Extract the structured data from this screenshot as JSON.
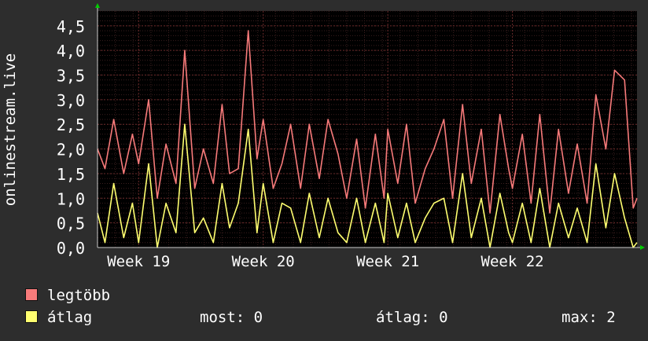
{
  "chart_data": {
    "type": "line",
    "ylabel": "onlinestream.live",
    "ylim": [
      0,
      4.8
    ],
    "y_ticks": [
      "0,0",
      "0,5",
      "1,0",
      "1,5",
      "2,0",
      "2,5",
      "3,0",
      "3,5",
      "4,0",
      "4,5"
    ],
    "y_tick_values": [
      0,
      0.5,
      1.0,
      1.5,
      2.0,
      2.5,
      3.0,
      3.5,
      4.0,
      4.5
    ],
    "x_ticks": [
      "Week 19",
      "Week 20",
      "Week 21",
      "Week 22"
    ],
    "x_tick_values": [
      19,
      20,
      21,
      22
    ],
    "xlim": [
      18.67,
      23.0
    ],
    "grid": true,
    "background": "#000000",
    "series": [
      {
        "name": "legtöbb",
        "color": "#f77a7a",
        "x": [
          18.67,
          18.73,
          18.8,
          18.88,
          18.95,
          19.0,
          19.08,
          19.15,
          19.22,
          19.3,
          19.37,
          19.45,
          19.52,
          19.6,
          19.67,
          19.73,
          19.8,
          19.88,
          19.95,
          20.0,
          20.08,
          20.15,
          20.22,
          20.3,
          20.37,
          20.45,
          20.52,
          20.6,
          20.67,
          20.75,
          20.82,
          20.9,
          20.97,
          21.0,
          21.08,
          21.15,
          21.22,
          21.3,
          21.37,
          21.45,
          21.52,
          21.6,
          21.67,
          21.75,
          21.82,
          21.9,
          21.97,
          22.0,
          22.08,
          22.15,
          22.22,
          22.3,
          22.37,
          22.45,
          22.52,
          22.6,
          22.67,
          22.75,
          22.82,
          22.9,
          22.97,
          23.0
        ],
        "values": [
          2.0,
          1.6,
          2.6,
          1.5,
          2.3,
          1.7,
          3.0,
          1.0,
          2.1,
          1.3,
          4.0,
          1.2,
          2.0,
          1.3,
          2.9,
          1.5,
          1.6,
          4.4,
          1.8,
          2.6,
          1.2,
          1.7,
          2.5,
          1.2,
          2.5,
          1.4,
          2.6,
          1.9,
          1.0,
          2.2,
          0.8,
          2.3,
          1.0,
          2.4,
          1.3,
          2.5,
          0.9,
          1.6,
          2.0,
          2.6,
          1.0,
          2.9,
          1.3,
          2.4,
          0.7,
          2.7,
          1.6,
          1.2,
          2.3,
          0.9,
          2.7,
          0.7,
          2.4,
          1.1,
          2.1,
          0.9,
          3.1,
          2.0,
          3.6,
          3.4,
          0.8,
          1.0
        ]
      },
      {
        "name": "átlag",
        "color": "#ffff70",
        "x": [
          18.67,
          18.73,
          18.8,
          18.88,
          18.95,
          19.0,
          19.08,
          19.15,
          19.22,
          19.3,
          19.37,
          19.45,
          19.52,
          19.6,
          19.67,
          19.73,
          19.8,
          19.88,
          19.95,
          20.0,
          20.08,
          20.15,
          20.22,
          20.3,
          20.37,
          20.45,
          20.52,
          20.6,
          20.67,
          20.75,
          20.82,
          20.9,
          20.97,
          21.0,
          21.08,
          21.15,
          21.22,
          21.3,
          21.37,
          21.45,
          21.52,
          21.6,
          21.67,
          21.75,
          21.82,
          21.9,
          21.97,
          22.0,
          22.08,
          22.15,
          22.22,
          22.3,
          22.37,
          22.45,
          22.52,
          22.6,
          22.67,
          22.75,
          22.82,
          22.9,
          22.97,
          23.0
        ],
        "values": [
          0.7,
          0.1,
          1.3,
          0.2,
          0.9,
          0.1,
          1.7,
          0.0,
          0.9,
          0.3,
          2.5,
          0.3,
          0.6,
          0.1,
          1.3,
          0.4,
          0.9,
          2.4,
          0.3,
          1.3,
          0.1,
          0.9,
          0.8,
          0.1,
          1.1,
          0.2,
          1.0,
          0.3,
          0.1,
          1.0,
          0.1,
          0.9,
          0.1,
          1.1,
          0.2,
          0.9,
          0.1,
          0.6,
          0.9,
          1.0,
          0.1,
          1.5,
          0.2,
          1.0,
          0.0,
          1.1,
          0.3,
          0.1,
          0.9,
          0.1,
          1.2,
          0.0,
          0.9,
          0.2,
          0.8,
          0.1,
          1.7,
          0.4,
          1.5,
          0.6,
          0.0,
          0.1
        ]
      }
    ]
  },
  "legend": {
    "stats": {
      "most_label": "most:",
      "most_value": "0",
      "atlag_label": "átlag:",
      "atlag_value": "0",
      "max_label": "max:",
      "max_value": "2"
    }
  }
}
